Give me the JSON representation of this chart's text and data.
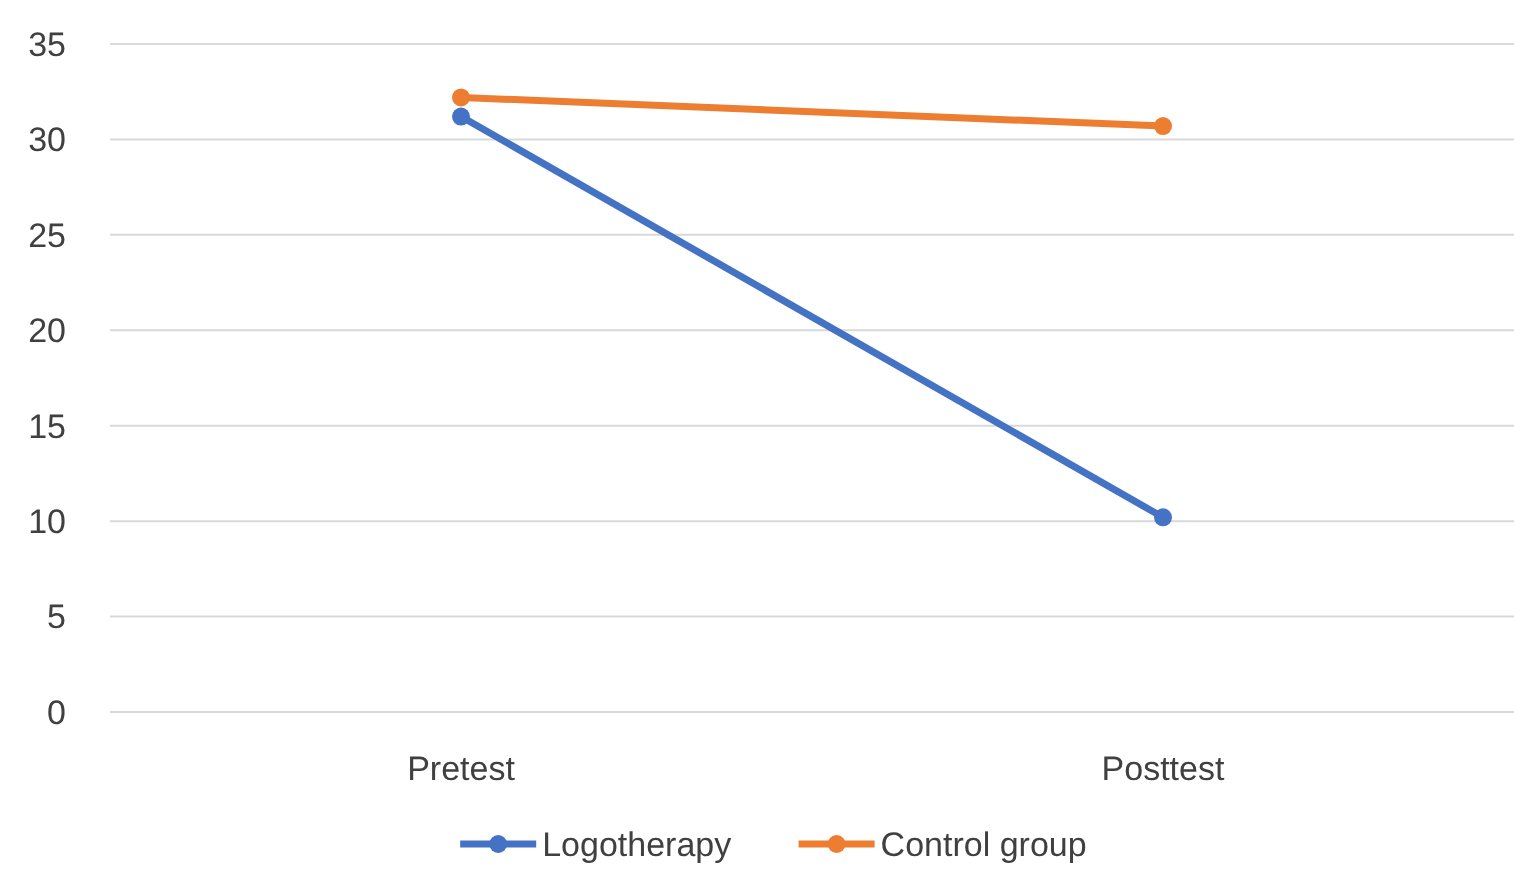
{
  "chart_data": {
    "type": "line",
    "categories": [
      "Pretest",
      "Posttest"
    ],
    "series": [
      {
        "name": "Logotherapy",
        "color": "#4472c4",
        "values": [
          31.2,
          10.2
        ]
      },
      {
        "name": "Control group",
        "color": "#ed7d31",
        "values": [
          32.2,
          30.7
        ]
      }
    ],
    "ylim": [
      0,
      35
    ],
    "yticks": [
      0,
      5,
      10,
      15,
      20,
      25,
      30,
      35
    ],
    "grid": "y",
    "legend": "bottom",
    "marker": "circle",
    "line_style": "solid"
  }
}
